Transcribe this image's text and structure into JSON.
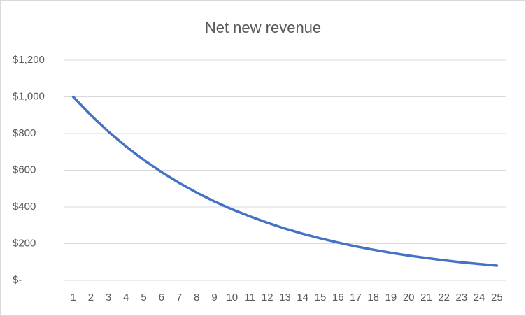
{
  "chart_data": {
    "type": "line",
    "title": "Net new revenue",
    "categories": [
      1,
      2,
      3,
      4,
      5,
      6,
      7,
      8,
      9,
      10,
      11,
      12,
      13,
      14,
      15,
      16,
      17,
      18,
      19,
      20,
      21,
      22,
      23,
      24,
      25
    ],
    "series": [
      {
        "name": "Net new revenue",
        "color": "#4472c4",
        "values": [
          1000,
          900,
          810,
          729,
          656,
          590,
          531,
          478,
          430,
          387,
          349,
          314,
          282,
          254,
          229,
          206,
          185,
          167,
          150,
          135,
          122,
          109,
          98,
          89,
          80
        ]
      }
    ],
    "ylim": [
      0,
      1200
    ],
    "yticks": [
      {
        "value": 0,
        "label": "$-"
      },
      {
        "value": 200,
        "label": "$200"
      },
      {
        "value": 400,
        "label": "$400"
      },
      {
        "value": 600,
        "label": "$600"
      },
      {
        "value": 800,
        "label": "$800"
      },
      {
        "value": 1000,
        "label": "$1,000"
      },
      {
        "value": 1200,
        "label": "$1,200"
      }
    ],
    "grid": true
  }
}
